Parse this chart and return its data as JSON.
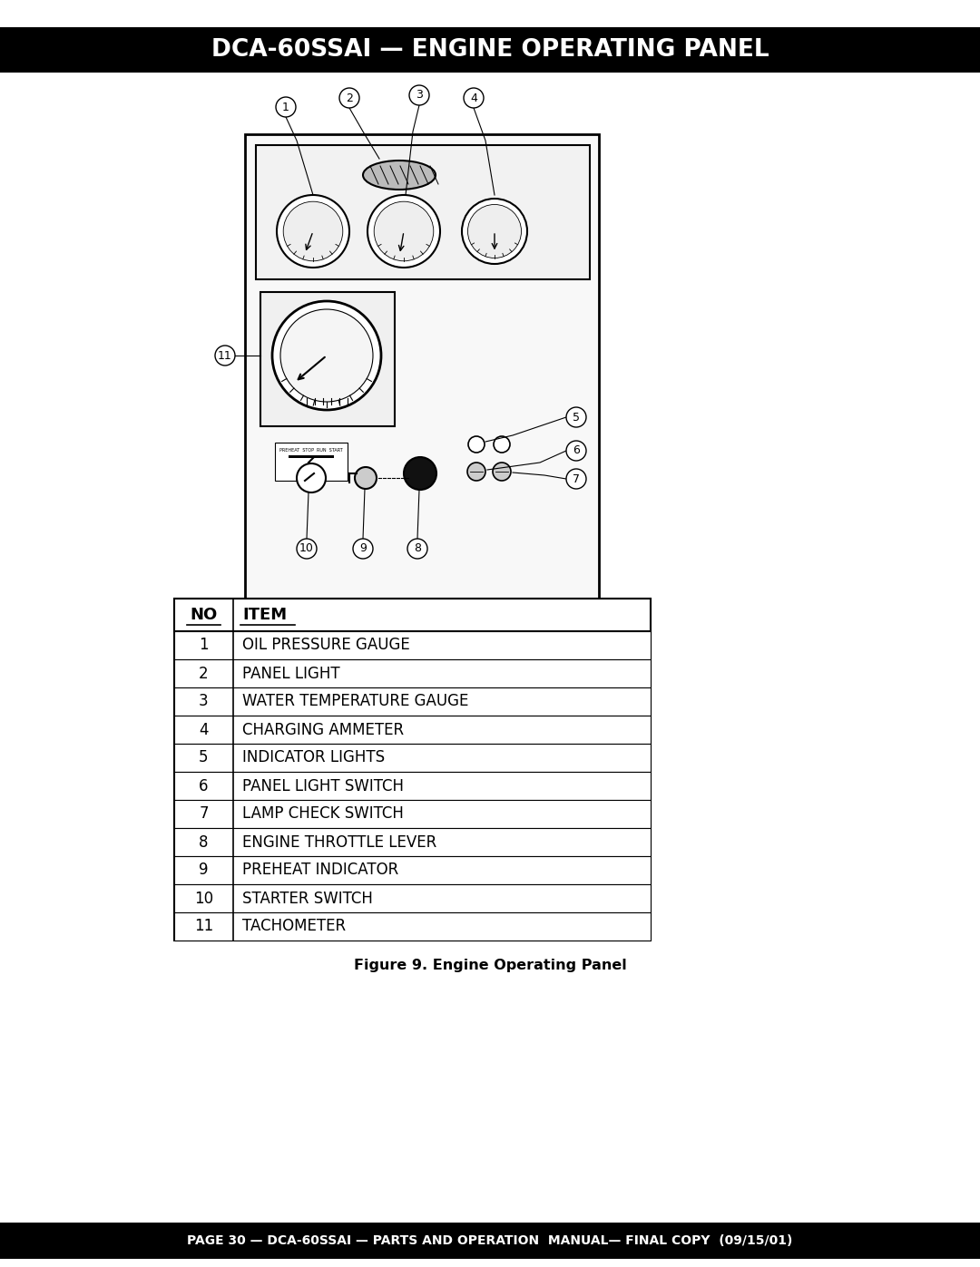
{
  "title": "DCA-60SSAI — ENGINE OPERATING PANEL",
  "footer": "PAGE 30 — DCA-60SSAI — PARTS AND OPERATION  MANUAL— FINAL COPY  (09/15/01)",
  "figure_caption": "Figure 9. Engine Operating Panel",
  "table_headers": [
    "NO",
    "ITEM"
  ],
  "table_rows": [
    [
      "1",
      "OIL PRESSURE GAUGE"
    ],
    [
      "2",
      "PANEL LIGHT"
    ],
    [
      "3",
      "WATER TEMPERATURE GAUGE"
    ],
    [
      "4",
      "CHARGING AMMETER"
    ],
    [
      "5",
      "INDICATOR LIGHTS"
    ],
    [
      "6",
      "PANEL LIGHT SWITCH"
    ],
    [
      "7",
      "LAMP CHECK SWITCH"
    ],
    [
      "8",
      "ENGINE THROTTLE LEVER"
    ],
    [
      "9",
      "PREHEAT INDICATOR"
    ],
    [
      "10",
      "STARTER SWITCH"
    ],
    [
      "11",
      "TACHOMETER"
    ]
  ],
  "header_bg": "#000000",
  "header_fg": "#ffffff",
  "footer_bg": "#000000",
  "footer_fg": "#ffffff",
  "page_bg": "#ffffff"
}
